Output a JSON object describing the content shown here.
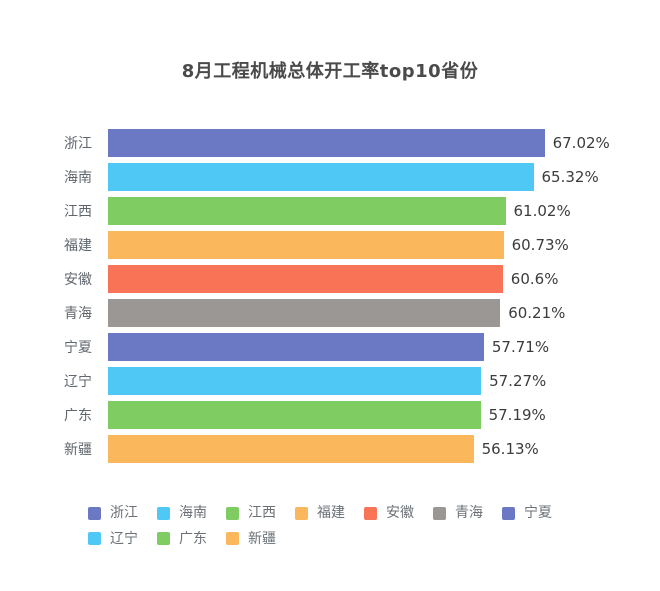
{
  "chart_data": {
    "type": "bar",
    "orientation": "horizontal",
    "title": "8月工程机械总体开工率top10省份",
    "categories": [
      "浙江",
      "海南",
      "江西",
      "福建",
      "安徽",
      "青海",
      "宁夏",
      "辽宁",
      "广东",
      "新疆"
    ],
    "values": [
      67.02,
      65.32,
      61.02,
      60.73,
      60.6,
      60.21,
      57.71,
      57.27,
      57.19,
      56.13
    ],
    "value_labels": [
      "67.02%",
      "65.32%",
      "61.02%",
      "60.73%",
      "60.6%",
      "60.21%",
      "57.71%",
      "57.27%",
      "57.19%",
      "56.13%"
    ],
    "unit": "%",
    "xlim": [
      0,
      70
    ],
    "grid": false,
    "palette": [
      "#6b79c5",
      "#4fc8f6",
      "#7fcc63",
      "#fbb75c",
      "#f97356",
      "#9a9794"
    ],
    "legend": {
      "position": "bottom-left",
      "entries": [
        "浙江",
        "海南",
        "江西",
        "福建",
        "安徽",
        "青海",
        "宁夏",
        "辽宁",
        "广东",
        "新疆"
      ]
    },
    "colors": {
      "title_text": "#4a4a4a",
      "category_text": "#5f666d",
      "value_text": "#3c3c3c",
      "legend_text": "#6b7177",
      "background": "#ffffff"
    }
  }
}
